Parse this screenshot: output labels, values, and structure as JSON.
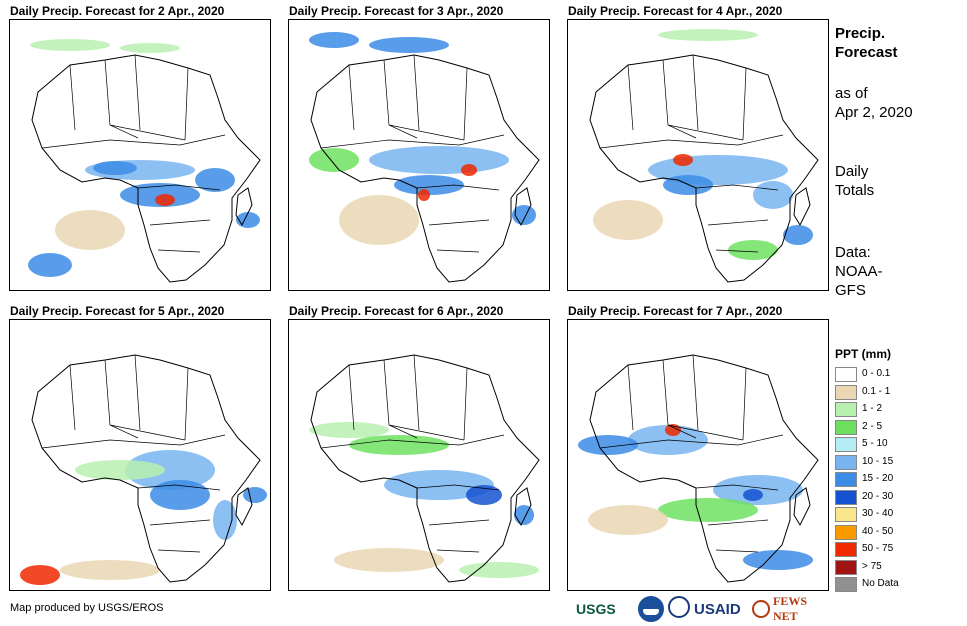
{
  "panels": [
    {
      "title": "Daily Precip. Forecast for 2 Apr., 2020"
    },
    {
      "title": "Daily Precip. Forecast for 3 Apr., 2020"
    },
    {
      "title": "Daily Precip. Forecast for 4 Apr., 2020"
    },
    {
      "title": "Daily Precip. Forecast for 5 Apr., 2020"
    },
    {
      "title": "Daily Precip. Forecast for 6 Apr., 2020"
    },
    {
      "title": "Daily Precip. Forecast for 7 Apr., 2020"
    }
  ],
  "sidebar": {
    "title_line1": "Precip.",
    "title_line2": "Forecast",
    "asof_line1": "as of",
    "asof_line2": "Apr 2, 2020",
    "totals_line1": "Daily",
    "totals_line2": "Totals",
    "data_line1": "Data:",
    "data_line2": "NOAA-",
    "data_line3": "GFS"
  },
  "legend": {
    "title": "PPT (mm)",
    "items": [
      {
        "label": "0 - 0.1",
        "color": "#ffffff"
      },
      {
        "label": "0.1 - 1",
        "color": "#ead7b4"
      },
      {
        "label": "1 - 2",
        "color": "#b8f0b0"
      },
      {
        "label": "2 - 5",
        "color": "#6ee060"
      },
      {
        "label": "5 - 10",
        "color": "#b4eef4"
      },
      {
        "label": "10 - 15",
        "color": "#78b4f0"
      },
      {
        "label": "15 - 20",
        "color": "#3c8ce6"
      },
      {
        "label": "20 - 30",
        "color": "#1452d2"
      },
      {
        "label": "30 - 40",
        "color": "#fae68c"
      },
      {
        "label": "40 - 50",
        "color": "#fa9a00"
      },
      {
        "label": "50 - 75",
        "color": "#f02800"
      },
      {
        "label": "> 75",
        "color": "#a01414"
      },
      {
        "label": "No Data",
        "color": "#909090"
      }
    ]
  },
  "footer": {
    "credit": "Map produced by USGS/EROS",
    "logos": {
      "usgs": "USGS",
      "usaid": "USAID",
      "fews": "FEWS NET"
    }
  }
}
